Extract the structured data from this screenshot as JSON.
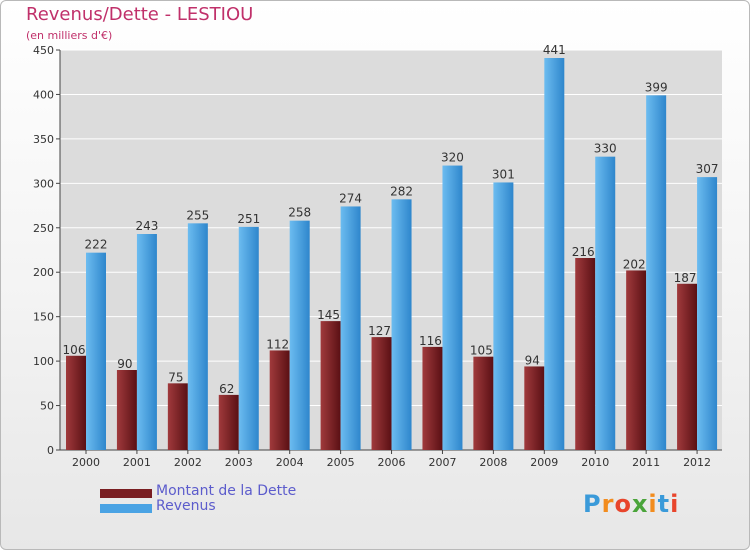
{
  "header": {
    "title": "Revenus/Dette - LESTIOU",
    "subtitle": "(en milliers d'€)"
  },
  "legend": {
    "dette_label": "Montant de la Dette",
    "revenus_label": "Revenus"
  },
  "logo": {
    "text": "Proxiti",
    "letters": [
      "P",
      "r",
      "o",
      "x",
      "i",
      "t",
      "i"
    ],
    "colors": [
      "#3a9ad9",
      "#f28c1e",
      "#e8452c",
      "#4aa43a",
      "#f28c1e",
      "#3a9ad9",
      "#e8452c"
    ]
  },
  "colors": {
    "dette": "#7a1e22",
    "revenus": "#4aa3e4",
    "axis_text": "#333333",
    "label_text": "#333333",
    "grid": "#ffffff"
  },
  "chart_data": {
    "type": "bar",
    "title": "Revenus/Dette - LESTIOU",
    "subtitle": "(en milliers d'€)",
    "categories": [
      "2000",
      "2001",
      "2002",
      "2003",
      "2004",
      "2005",
      "2006",
      "2007",
      "2008",
      "2009",
      "2010",
      "2011",
      "2012"
    ],
    "series": [
      {
        "name": "Montant de la Dette",
        "values": [
          106,
          90,
          75,
          62,
          112,
          145,
          127,
          116,
          105,
          94,
          216,
          202,
          187
        ]
      },
      {
        "name": "Revenus",
        "values": [
          222,
          243,
          255,
          251,
          258,
          274,
          282,
          320,
          301,
          441,
          330,
          399,
          307
        ]
      }
    ],
    "ylim": [
      0,
      450
    ],
    "yticks": [
      0,
      50,
      100,
      150,
      200,
      250,
      300,
      350,
      400,
      450
    ],
    "grid": true,
    "legend_position": "bottom-left"
  }
}
